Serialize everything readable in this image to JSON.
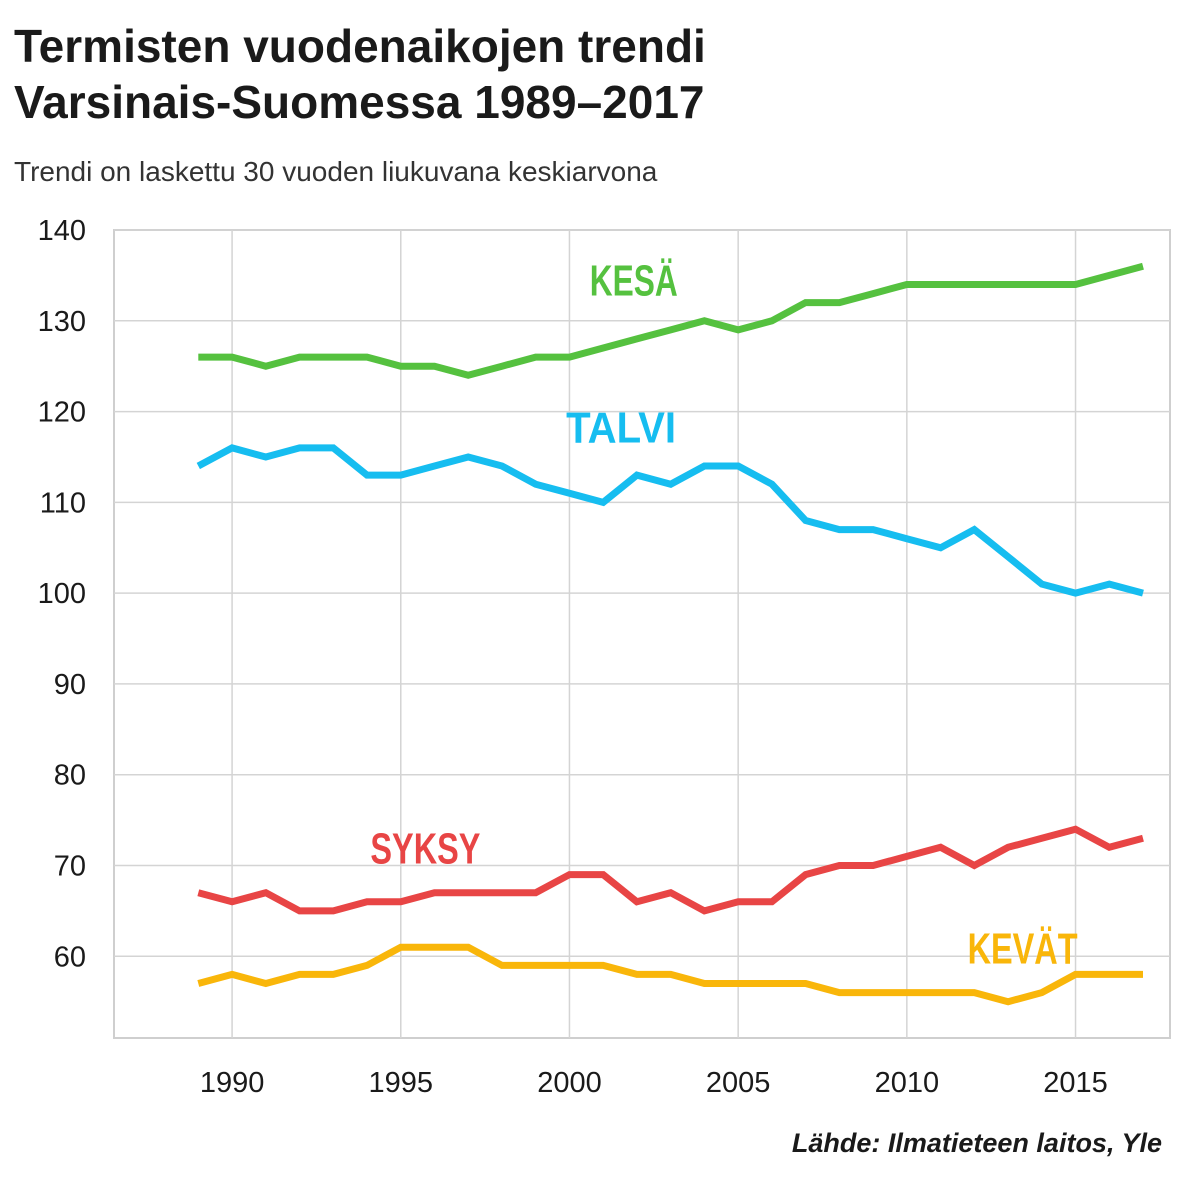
{
  "title_line1": "Termisten vuodenaikojen trendi",
  "title_line2": "Varsinais-Suomessa 1989–2017",
  "subtitle": "Trendi on laskettu 30 vuoden liukuvana keskiarvona",
  "source": "Lähde: Ilmatieteen laitos, Yle",
  "chart_data": {
    "type": "line",
    "title": "Termisten vuodenaikojen trendi Varsinais-Suomessa 1989–2017",
    "subtitle": "Trendi on laskettu 30 vuoden liukuvana keskiarvona",
    "xlabel": "",
    "ylabel": "",
    "xlim": [
      1986.5,
      2017.8
    ],
    "ylim": [
      51,
      140
    ],
    "xticks": [
      1990,
      1995,
      2000,
      2005,
      2010,
      2015
    ],
    "yticks": [
      60,
      70,
      80,
      90,
      100,
      110,
      120,
      130,
      140
    ],
    "grid": true,
    "legend": "inline labels",
    "x": [
      1989,
      1990,
      1991,
      1992,
      1993,
      1994,
      1995,
      1996,
      1997,
      1998,
      1999,
      2000,
      2001,
      2002,
      2003,
      2004,
      2005,
      2006,
      2007,
      2008,
      2009,
      2010,
      2011,
      2012,
      2013,
      2014,
      2015,
      2016,
      2017
    ],
    "series": [
      {
        "name": "KESÄ",
        "color": "#55c13f",
        "label_pos": [
          2000.6,
          132.8
        ],
        "values": [
          126,
          126,
          125,
          126,
          126,
          126,
          125,
          125,
          124,
          125,
          126,
          126,
          127,
          128,
          129,
          130,
          129,
          130,
          132,
          132,
          133,
          134,
          134,
          134,
          134,
          134,
          134,
          135,
          136
        ]
      },
      {
        "name": "TALVI",
        "color": "#16bdf0",
        "label_pos": [
          1999.9,
          116.6
        ],
        "values": [
          114,
          116,
          115,
          116,
          116,
          113,
          113,
          114,
          115,
          114,
          112,
          111,
          110,
          113,
          112,
          114,
          114,
          112,
          108,
          107,
          107,
          106,
          105,
          107,
          104,
          101,
          100,
          101,
          100
        ]
      },
      {
        "name": "SYKSY",
        "color": "#e84545",
        "label_pos": [
          1994.1,
          70.2
        ],
        "values": [
          67,
          66,
          67,
          65,
          65,
          66,
          66,
          67,
          67,
          67,
          67,
          69,
          69,
          66,
          67,
          65,
          66,
          66,
          69,
          70,
          70,
          71,
          72,
          70,
          72,
          73,
          74,
          72,
          73
        ]
      },
      {
        "name": "KEVÄT",
        "color": "#f9b60a",
        "label_pos": [
          2011.8,
          59.2
        ],
        "values": [
          57,
          58,
          57,
          58,
          58,
          59,
          61,
          61,
          61,
          59,
          59,
          59,
          59,
          58,
          58,
          57,
          57,
          57,
          57,
          56,
          56,
          56,
          56,
          56,
          55,
          56,
          58,
          58,
          58
        ]
      }
    ]
  }
}
